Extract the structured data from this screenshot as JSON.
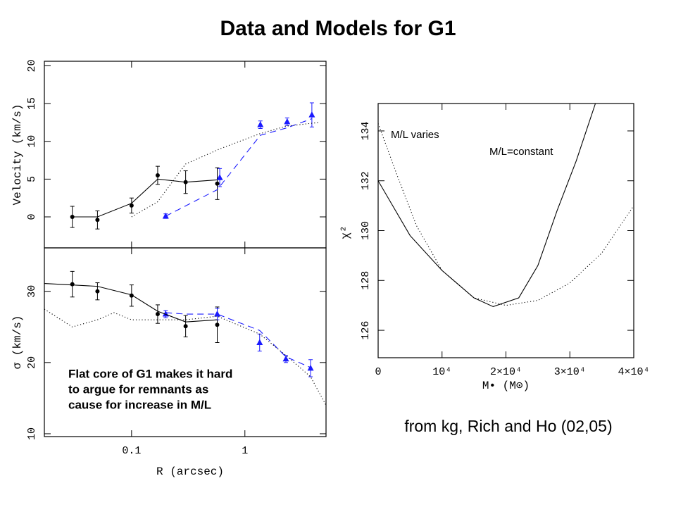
{
  "title": "Data and Models for G1",
  "caption": "from kg, Rich and Ho (02,05)",
  "chart_data": [
    {
      "type": "line",
      "ylabel": "Velocity (km/s)",
      "xlog": true,
      "xlim": [
        0.017,
        5.2
      ],
      "ylim": [
        -4.1,
        20.6
      ],
      "xticks": [
        0.1,
        1
      ],
      "xtick_labels": false,
      "yticks": [
        0,
        5,
        10,
        15,
        20
      ],
      "series": [
        {
          "style": "points",
          "marker": "circle",
          "color": "#000000",
          "x": [
            0.03,
            0.05,
            0.1,
            0.17,
            0.3,
            0.57
          ],
          "values": [
            0,
            -0.4,
            1.5,
            5.5,
            4.6,
            4.4
          ],
          "errors": [
            1.4,
            1.2,
            1.0,
            1.2,
            1.5,
            2.1
          ]
        },
        {
          "style": "points",
          "marker": "triangle",
          "color": "#1a1aff",
          "x": [
            0.2,
            0.6,
            1.37,
            2.36,
            3.9
          ],
          "values": [
            0.1,
            5.2,
            12.2,
            12.6,
            13.5
          ],
          "errors": [
            0.3,
            1.2,
            0.5,
            0.5,
            1.6
          ]
        },
        {
          "style": "solid",
          "color": "#000000",
          "x": [
            0.03,
            0.05,
            0.1,
            0.17,
            0.3,
            0.57
          ],
          "values": [
            0,
            0,
            1.8,
            5,
            4.6,
            4.9
          ]
        },
        {
          "style": "dashed",
          "color": "#1a1aff",
          "x": [
            0.2,
            0.57,
            1.37,
            2.36,
            3.9
          ],
          "values": [
            0.1,
            3.6,
            10.8,
            11.8,
            13
          ]
        },
        {
          "style": "dotted",
          "color": "#000000",
          "x": [
            0.1,
            0.17,
            0.3,
            0.6,
            1.35,
            2.3,
            4.5
          ],
          "values": [
            0,
            2,
            7,
            9,
            11,
            12,
            12.5
          ]
        }
      ]
    },
    {
      "type": "line",
      "ylabel": "σ (km/s)",
      "xlabel": "R (arcsec)",
      "xlog": true,
      "xlim": [
        0.017,
        5.2
      ],
      "ylim": [
        9.6,
        36.1
      ],
      "xticks": [
        0.1,
        1
      ],
      "xtick_labels": true,
      "yticks": [
        10,
        20,
        30
      ],
      "annotations": [
        "Flat core of G1 makes it hard",
        "to argue for remnants as",
        "cause for increase in M/L"
      ],
      "series": [
        {
          "style": "points",
          "marker": "circle",
          "color": "#000000",
          "x": [
            0.03,
            0.05,
            0.1,
            0.17,
            0.3,
            0.57
          ],
          "values": [
            31,
            30,
            29.4,
            26.8,
            25.1,
            25.3
          ],
          "errors": [
            1.8,
            1.2,
            1.5,
            1.3,
            1.5,
            2.5
          ]
        },
        {
          "style": "points",
          "marker": "triangle",
          "color": "#1a1aff",
          "x": [
            0.2,
            0.57,
            1.35,
            2.3,
            3.8
          ],
          "values": [
            26.8,
            26.8,
            22.8,
            20.5,
            19.2
          ],
          "errors": [
            0.5,
            0.8,
            1.2,
            0.5,
            1.2
          ]
        },
        {
          "style": "solid",
          "color": "#000000",
          "x": [
            0.017,
            0.05,
            0.1,
            0.17,
            0.3,
            0.57
          ],
          "values": [
            31.1,
            30.7,
            29.5,
            27.2,
            25.7,
            26
          ]
        },
        {
          "style": "dashed",
          "color": "#1a1aff",
          "x": [
            0.2,
            0.3,
            0.57,
            1.35,
            2.3,
            3.8
          ],
          "values": [
            27,
            26.8,
            26.8,
            24.5,
            20.8,
            19.3
          ]
        },
        {
          "style": "dotted",
          "color": "#000000",
          "x": [
            0.017,
            0.03,
            0.05,
            0.07,
            0.1,
            0.17,
            0.3,
            0.57,
            1.35,
            2.3,
            3.8,
            5.2
          ],
          "values": [
            27.5,
            25,
            26,
            27,
            26,
            26,
            26,
            26.5,
            24,
            21,
            18,
            14
          ]
        }
      ]
    },
    {
      "type": "line",
      "ylabel": "χ²",
      "xlabel": "M• (M⊙)",
      "xlog": false,
      "xlim": [
        0,
        40000
      ],
      "ylim": [
        124.9,
        135.1
      ],
      "xticks": [
        0,
        {
          "value": 10000,
          "label": "10⁴"
        },
        {
          "value": 20000,
          "label": "2×10⁴"
        },
        {
          "value": 30000,
          "label": "3×10⁴"
        },
        {
          "value": 40000,
          "label": "4×10⁴"
        }
      ],
      "xtick_labels": true,
      "yticks": [
        126,
        128,
        130,
        132,
        134
      ],
      "annotations": [
        "M/L varies",
        "M/L=constant"
      ],
      "series": [
        {
          "style": "solid",
          "color": "#000000",
          "x": [
            0,
            5000,
            10000,
            15000,
            18000,
            22000,
            25000,
            28000,
            31000,
            34000
          ],
          "values": [
            132,
            129.8,
            128.4,
            127.3,
            126.95,
            127.3,
            128.6,
            130.8,
            132.8,
            135.1
          ]
        },
        {
          "style": "dotted",
          "color": "#000000",
          "x": [
            0,
            3000,
            6000,
            10000,
            15000,
            20000,
            25000,
            30000,
            35000,
            40000
          ],
          "values": [
            134.3,
            132.2,
            130.2,
            128.4,
            127.3,
            127.0,
            127.2,
            127.9,
            129.1,
            131.0
          ]
        }
      ]
    }
  ]
}
